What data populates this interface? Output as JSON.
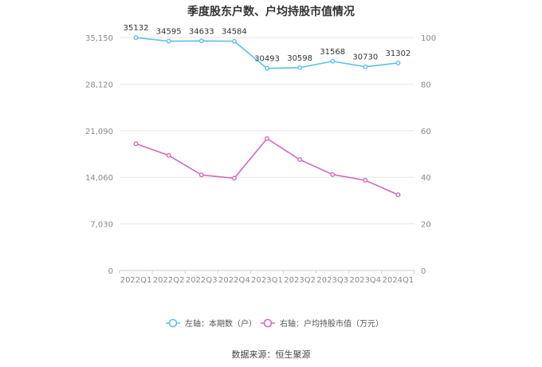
{
  "chart_data": {
    "type": "line",
    "title": "季度股东户数、户均持股市值情况",
    "categories": [
      "2022Q1",
      "2022Q2",
      "2022Q3",
      "2022Q4",
      "2023Q1",
      "2023Q2",
      "2023Q3",
      "2023Q4",
      "2024Q1"
    ],
    "series": [
      {
        "name": "左轴：本期数（户）",
        "axis": "left",
        "color": "#5bc0eb",
        "values": [
          35132,
          34595,
          34633,
          34584,
          30493,
          30598,
          31568,
          30730,
          31302
        ],
        "labels": [
          "35132",
          "34595",
          "34633",
          "34584",
          "30493",
          "30598",
          "31568",
          "30730",
          "31302"
        ]
      },
      {
        "name": "右轴：户均持股市值（万元）",
        "axis": "right",
        "color": "#d46ab8",
        "values": [
          54.4,
          49.4,
          41.0,
          39.6,
          56.6,
          47.6,
          41.2,
          38.7,
          32.5
        ]
      }
    ],
    "left_axis": {
      "min": 0,
      "max": 35150,
      "ticks": [
        0,
        7030,
        14060,
        21090,
        28120,
        35150
      ],
      "tick_labels": [
        "0",
        "7,030",
        "14,060",
        "21,090",
        "28,120",
        "35,150"
      ]
    },
    "right_axis": {
      "min": 0,
      "max": 100,
      "ticks": [
        0,
        20,
        40,
        60,
        80,
        100
      ],
      "tick_labels": [
        "0",
        "20",
        "40",
        "60",
        "80",
        "100"
      ]
    },
    "grid": true,
    "legend_position": "bottom"
  },
  "footer": {
    "source": "数据来源：恒生聚源"
  },
  "colors": {
    "axis_text": "#8a8a8a",
    "grid": "#e6e6e6",
    "label_text": "#333333"
  }
}
